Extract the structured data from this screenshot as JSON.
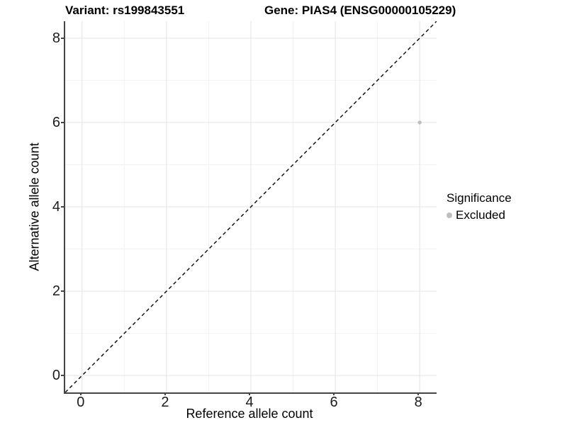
{
  "titles": {
    "left": "Variant: rs199843551",
    "right": "Gene: PIAS4 (ENSG00000105229)"
  },
  "chart_data": {
    "type": "scatter",
    "xlabel": "Reference allele count",
    "ylabel": "Alternative allele count",
    "xlim": [
      -0.4,
      8.4
    ],
    "ylim": [
      -0.4,
      8.4
    ],
    "xticks": [
      0,
      2,
      4,
      6,
      8
    ],
    "yticks": [
      0,
      2,
      4,
      6,
      8
    ],
    "xticks_minor": [
      1,
      3,
      5,
      7
    ],
    "yticks_minor": [
      1,
      3,
      5,
      7
    ],
    "grid": true,
    "identity_line": {
      "style": "dashed",
      "x1": -0.4,
      "y1": -0.4,
      "x2": 8.4,
      "y2": 8.4,
      "color": "#000000",
      "width": 1.4,
      "dash": "5 4"
    },
    "points": [
      {
        "x": 8,
        "y": 6,
        "series": "Excluded",
        "color": "#BEBEBE",
        "radius": 2.7
      }
    ],
    "legend": {
      "title": "Significance",
      "position": "right",
      "entries": [
        {
          "label": "Excluded",
          "color": "#BEBEBE"
        }
      ]
    },
    "colors": {
      "grid_major": "#E4E4E4",
      "grid_minor": "#F2F2F2",
      "axis_line": "#454545",
      "tick_text": "#1c1c1c"
    }
  }
}
